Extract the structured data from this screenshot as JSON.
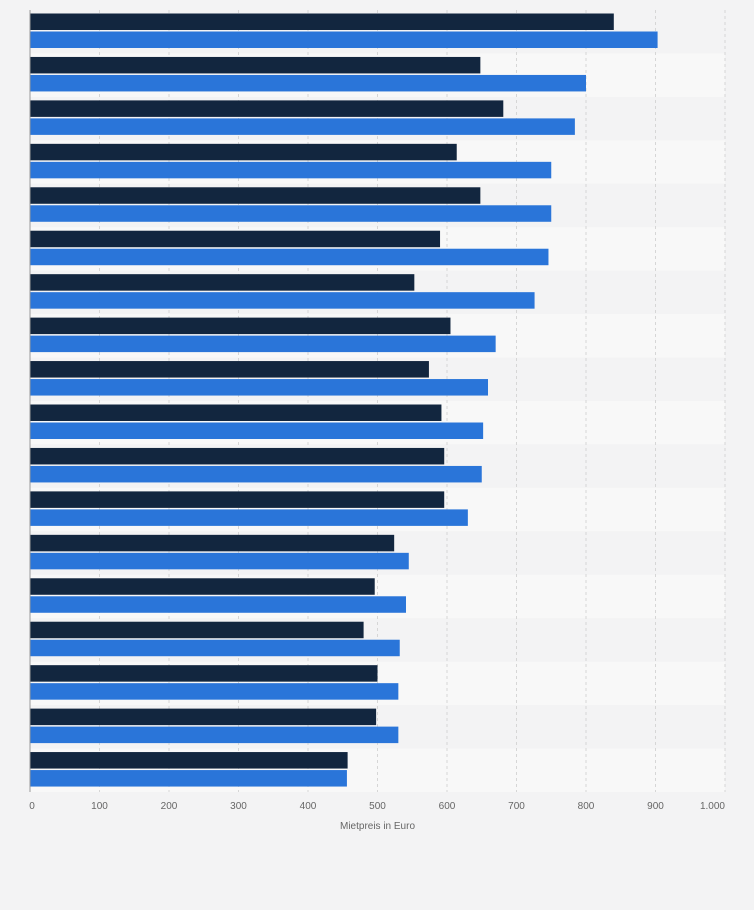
{
  "chart_data": {
    "type": "bar",
    "orientation": "horizontal",
    "xlabel": "Mietpreis in Euro",
    "xlim": [
      0,
      1000
    ],
    "x_ticks": [
      0,
      100,
      200,
      300,
      400,
      500,
      600,
      700,
      800,
      900,
      1000
    ],
    "x_tick_labels": [
      "0",
      "100",
      "200",
      "300",
      "400",
      "500",
      "600",
      "700",
      "800",
      "900",
      "1.000"
    ],
    "grid": true,
    "series": [
      {
        "color": "#12263f",
        "values": [
          840,
          648,
          681,
          614,
          648,
          590,
          553,
          605,
          574,
          592,
          596,
          596,
          524,
          496,
          480,
          500,
          498,
          457
        ]
      },
      {
        "color": "#2a75d9",
        "values": [
          903,
          800,
          784,
          750,
          750,
          746,
          726,
          670,
          659,
          652,
          650,
          630,
          545,
          541,
          532,
          530,
          530,
          456
        ]
      }
    ]
  }
}
